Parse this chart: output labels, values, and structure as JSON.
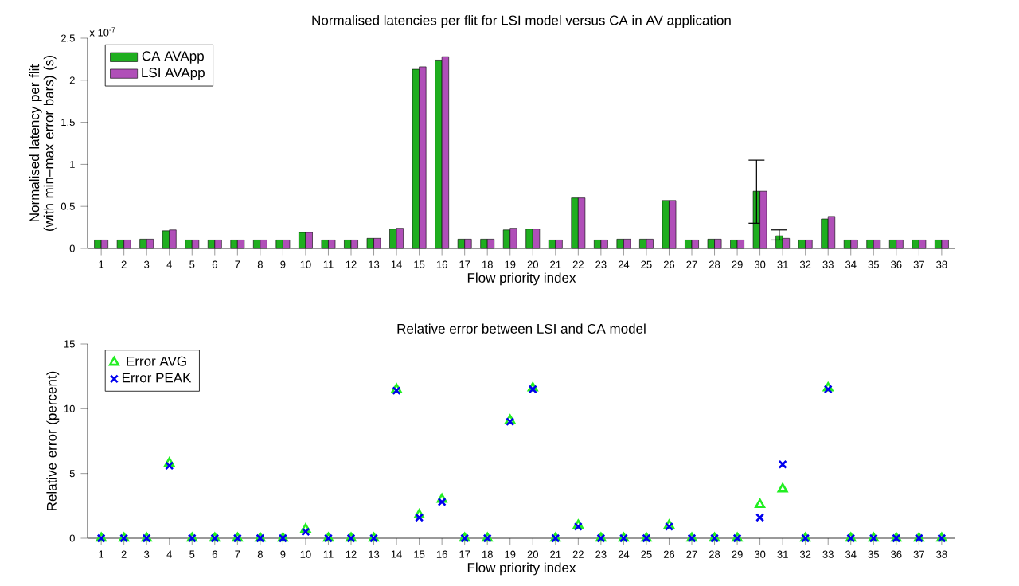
{
  "chart_data": [
    {
      "type": "bar",
      "title": "Normalised latencies per flit for LSI model versus CA in AV application",
      "xlabel": "Flow priority index",
      "ylabel": "Normalised latency per flit\n(with min–max error bars) (s)",
      "annotations": [
        "x 10$^{-7}$"
      ],
      "categories": [
        "1",
        "2",
        "3",
        "4",
        "5",
        "6",
        "7",
        "8",
        "9",
        "10",
        "11",
        "12",
        "13",
        "14",
        "15",
        "16",
        "17",
        "18",
        "19",
        "20",
        "21",
        "22",
        "23",
        "24",
        "25",
        "26",
        "27",
        "28",
        "29",
        "30",
        "31",
        "32",
        "33",
        "34",
        "35",
        "36",
        "37",
        "38"
      ],
      "series": [
        {
          "name": "CA AVApp",
          "color": "#1fae1f",
          "values": [
            0.1,
            0.1,
            0.11,
            0.21,
            0.1,
            0.1,
            0.1,
            0.1,
            0.1,
            0.19,
            0.1,
            0.1,
            0.12,
            0.23,
            2.13,
            2.24,
            0.11,
            0.11,
            0.22,
            0.23,
            0.1,
            0.6,
            0.1,
            0.11,
            0.11,
            0.57,
            0.1,
            0.11,
            0.1,
            0.68,
            0.15,
            0.1,
            0.35,
            0.1,
            0.1,
            0.1,
            0.1,
            0.1
          ],
          "errors": [
            null,
            null,
            null,
            null,
            null,
            null,
            null,
            null,
            null,
            null,
            null,
            null,
            null,
            null,
            null,
            null,
            null,
            null,
            null,
            null,
            null,
            null,
            null,
            null,
            null,
            null,
            null,
            null,
            null,
            [
              0.3,
              1.05
            ],
            [
              0.1,
              0.22
            ],
            null,
            null,
            null,
            null,
            null,
            null,
            null
          ]
        },
        {
          "name": "LSI AVApp",
          "color": "#b04fb8",
          "values": [
            0.1,
            0.1,
            0.11,
            0.22,
            0.1,
            0.1,
            0.1,
            0.1,
            0.1,
            0.19,
            0.1,
            0.1,
            0.12,
            0.24,
            2.16,
            2.28,
            0.11,
            0.11,
            0.24,
            0.23,
            0.1,
            0.6,
            0.1,
            0.11,
            0.11,
            0.57,
            0.1,
            0.11,
            0.1,
            0.68,
            0.12,
            0.1,
            0.38,
            0.1,
            0.1,
            0.1,
            0.1,
            0.1
          ]
        }
      ],
      "ylim": [
        0,
        2.5
      ],
      "yticks": [
        0,
        0.5,
        1,
        1.5,
        2,
        2.5
      ],
      "legend": "top left"
    },
    {
      "type": "scatter",
      "title": "Relative error between LSI and CA model",
      "xlabel": "Flow priority index",
      "ylabel": "Relative error (percent)",
      "categories": [
        "1",
        "2",
        "3",
        "4",
        "5",
        "6",
        "7",
        "8",
        "9",
        "10",
        "11",
        "12",
        "13",
        "14",
        "15",
        "16",
        "17",
        "18",
        "19",
        "20",
        "21",
        "22",
        "23",
        "24",
        "25",
        "26",
        "27",
        "28",
        "29",
        "30",
        "31",
        "32",
        "33",
        "34",
        "35",
        "36",
        "37",
        "38"
      ],
      "series": [
        {
          "name": "Error AVG",
          "color": "#22ee22",
          "marker": "triangle",
          "values": [
            0,
            0,
            0,
            5.8,
            0,
            0,
            0,
            0,
            0,
            0.7,
            0,
            0,
            0,
            11.5,
            1.8,
            3.0,
            0,
            0,
            9.1,
            11.6,
            0,
            1.0,
            0,
            0,
            0,
            1.0,
            0,
            0,
            0,
            2.6,
            3.8,
            0,
            11.6,
            0,
            0,
            0,
            0,
            0
          ]
        },
        {
          "name": "Error PEAK",
          "color": "#0000ee",
          "marker": "cross",
          "values": [
            0,
            0,
            0,
            5.6,
            0,
            0,
            0,
            0,
            0,
            0.5,
            0,
            0,
            0,
            11.4,
            1.6,
            2.8,
            0,
            0,
            9.0,
            11.5,
            0,
            0.9,
            0,
            0,
            0,
            0.9,
            0,
            0,
            0,
            1.6,
            5.7,
            0,
            11.5,
            0,
            0,
            0,
            0,
            0
          ]
        }
      ],
      "ylim": [
        0,
        15
      ],
      "yticks": [
        0,
        5,
        10,
        15
      ],
      "legend": "top left"
    }
  ]
}
